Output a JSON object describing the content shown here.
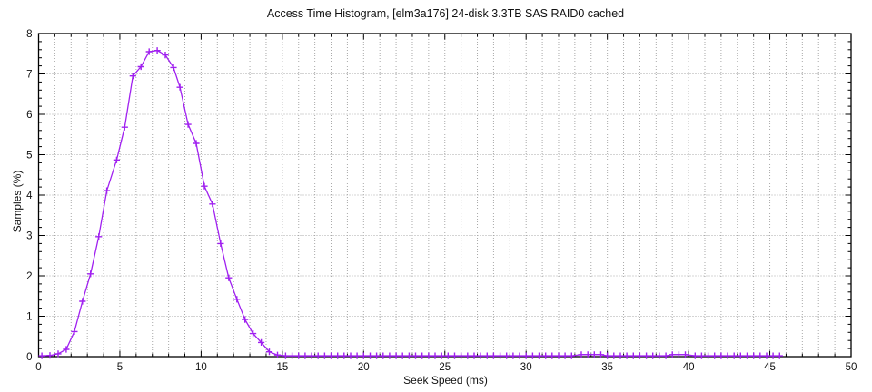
{
  "chart_data": {
    "type": "line",
    "title": "Access Time Histogram, [elm3a176] 24-disk 3.3TB SAS RAID0 cached",
    "xlabel": "Seek Speed (ms)",
    "ylabel": "Samples (%)",
    "xlim": [
      0,
      50
    ],
    "ylim": [
      0,
      8
    ],
    "x_major_ticks": [
      0,
      5,
      10,
      15,
      20,
      25,
      30,
      35,
      40,
      45,
      50
    ],
    "x_minor_step": 1,
    "y_major_ticks": [
      0,
      1,
      2,
      3,
      4,
      5,
      6,
      7,
      8
    ],
    "y_minor_step": 0.2,
    "grid": {
      "style": "dotted",
      "color": "#a9a9a9",
      "x_every": 1,
      "y_every": 1
    },
    "legend": null,
    "series": [
      {
        "name": "samples",
        "color": "#a020f0",
        "marker": "plus",
        "points": [
          [
            0.2,
            0.02
          ],
          [
            0.7,
            0.03
          ],
          [
            1.2,
            0.07
          ],
          [
            1.7,
            0.18
          ],
          [
            2.2,
            0.62
          ],
          [
            2.7,
            1.37
          ],
          [
            3.2,
            2.05
          ],
          [
            3.7,
            2.97
          ],
          [
            4.2,
            4.11
          ],
          [
            4.8,
            4.87
          ],
          [
            5.3,
            5.68
          ],
          [
            5.8,
            6.95
          ],
          [
            6.3,
            7.18
          ],
          [
            6.8,
            7.55
          ],
          [
            7.3,
            7.58
          ],
          [
            7.8,
            7.47
          ],
          [
            8.3,
            7.16
          ],
          [
            8.7,
            6.67
          ],
          [
            9.2,
            5.75
          ],
          [
            9.7,
            5.28
          ],
          [
            10.2,
            4.22
          ],
          [
            10.7,
            3.78
          ],
          [
            11.2,
            2.8
          ],
          [
            11.7,
            1.95
          ],
          [
            12.2,
            1.42
          ],
          [
            12.7,
            0.92
          ],
          [
            13.2,
            0.57
          ],
          [
            13.7,
            0.35
          ],
          [
            14.2,
            0.12
          ],
          [
            14.7,
            0.04
          ],
          [
            15.2,
            0.02
          ]
        ],
        "zero_tail_segments": [
          {
            "start": 15.6,
            "end": 33.0,
            "step": 0.4,
            "y": 0.02
          },
          {
            "start": 33.4,
            "end": 34.6,
            "step": 0.4,
            "y": 0.05
          },
          {
            "start": 35.0,
            "end": 38.6,
            "step": 0.4,
            "y": 0.02
          },
          {
            "start": 39.0,
            "end": 40.0,
            "step": 0.4,
            "y": 0.05
          },
          {
            "start": 40.4,
            "end": 45.8,
            "step": 0.4,
            "y": 0.02
          }
        ]
      }
    ]
  }
}
